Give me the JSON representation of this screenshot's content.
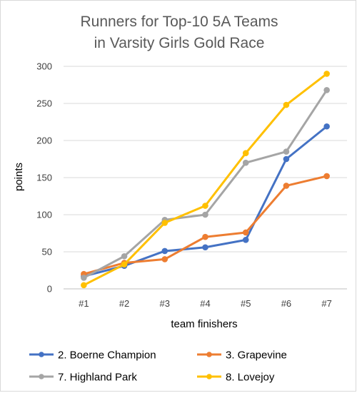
{
  "chart_data": {
    "type": "line",
    "title_lines": [
      "Runners for Top-10 5A Teams",
      "in Varsity Girls Gold Race"
    ],
    "xlabel": "team finishers",
    "ylabel": "points",
    "categories": [
      "#1",
      "#2",
      "#3",
      "#4",
      "#5",
      "#6",
      "#7"
    ],
    "ylim": [
      0,
      300
    ],
    "yticks": [
      0,
      50,
      100,
      150,
      200,
      250,
      300
    ],
    "grid": true,
    "legend_position": "bottom",
    "series": [
      {
        "name": "2. Boerne Champion",
        "color": "#4472C4",
        "values": [
          17,
          31,
          51,
          56,
          66,
          175,
          219
        ]
      },
      {
        "name": "3. Grapevine",
        "color": "#ED7D31",
        "values": [
          20,
          35,
          40,
          70,
          76,
          139,
          152
        ]
      },
      {
        "name": "7. Highland Park",
        "color": "#A5A5A5",
        "values": [
          15,
          44,
          93,
          100,
          170,
          185,
          268
        ]
      },
      {
        "name": "8. Lovejoy",
        "color": "#FFC000",
        "values": [
          5,
          33,
          89,
          112,
          183,
          248,
          290
        ]
      }
    ]
  }
}
